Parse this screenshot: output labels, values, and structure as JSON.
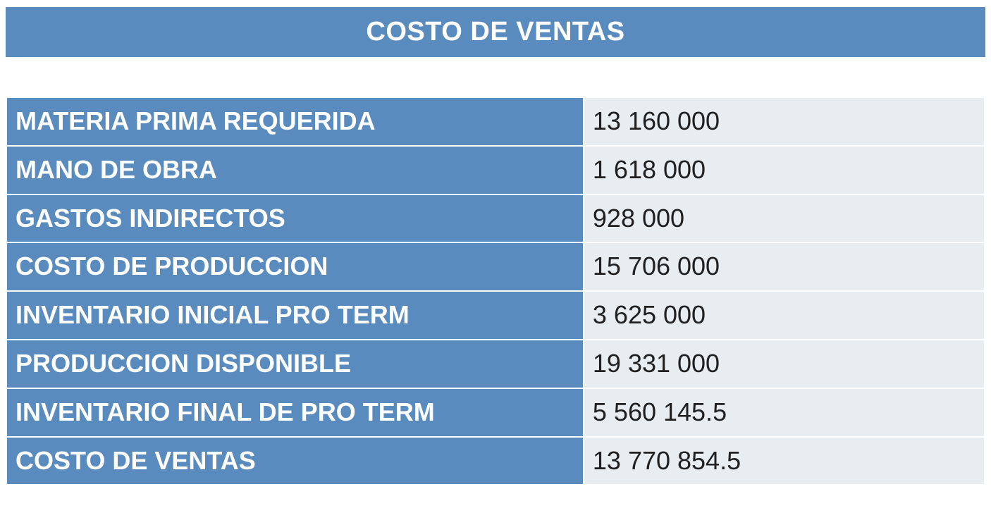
{
  "title": "COSTO DE VENTAS",
  "table": {
    "type": "table",
    "columns": [
      "label",
      "value"
    ],
    "label_bg_color": "#5a8bbf",
    "label_text_color": "#ffffff",
    "value_bg_color": "#e8edf2",
    "value_text_color": "#202020",
    "border_color": "#ffffff",
    "font_size_pt": 27,
    "label_font_weight": "bold",
    "value_font_weight": "normal",
    "rows": [
      {
        "label": "MATERIA PRIMA REQUERIDA",
        "value": "13 160 000"
      },
      {
        "label": "MANO DE OBRA",
        "value": "1 618 000"
      },
      {
        "label": "GASTOS INDIRECTOS",
        "value": "928 000"
      },
      {
        "label": "COSTO DE PRODUCCION",
        "value": "15 706 000"
      },
      {
        "label": "INVENTARIO INICIAL PRO TERM",
        "value": "3 625 000"
      },
      {
        "label": "PRODUCCION DISPONIBLE",
        "value": "19 331 000"
      },
      {
        "label": "INVENTARIO FINAL DE PRO TERM",
        "value": "5 560 145.5"
      },
      {
        "label": "COSTO DE VENTAS",
        "value": "13 770 854.5"
      }
    ]
  },
  "title_bar": {
    "bg_color": "#5a8bbf",
    "text_color": "#ffffff",
    "font_size_pt": 28,
    "font_weight": "bold"
  },
  "background_color": "#ffffff"
}
